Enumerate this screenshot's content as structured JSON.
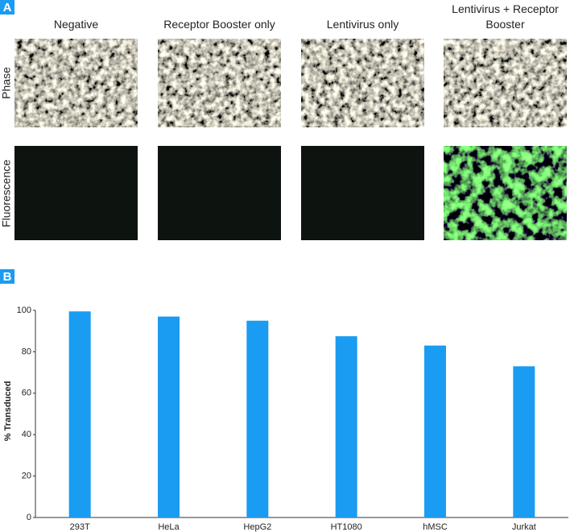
{
  "panel_a": {
    "label": "A",
    "columns": [
      "Negative",
      "Receptor Booster only",
      "Lentivirus only",
      "Lentivirus + Receptor Booster"
    ],
    "rows": [
      "Phase",
      "Fluorescence"
    ]
  },
  "panel_b": {
    "label": "B"
  },
  "chart_data": {
    "type": "bar",
    "y_label": "% Transduced",
    "categories": [
      "293T",
      "HeLa",
      "HepG2",
      "HT1080",
      "hMSC",
      "Jurkat"
    ],
    "values": [
      99.5,
      97,
      95,
      87.5,
      83,
      73
    ],
    "color": "#1a9cf2",
    "ylim": [
      0,
      100
    ],
    "yticks": [
      0,
      20,
      40,
      60,
      80,
      100
    ],
    "grid": false
  }
}
